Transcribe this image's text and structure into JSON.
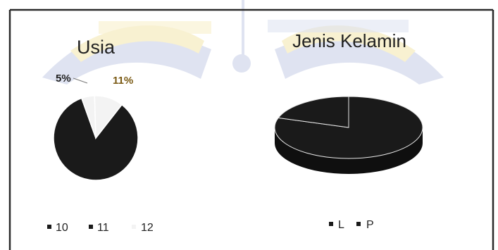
{
  "colors": {
    "dark_slice": "#1a1a1a",
    "light_slice": "#f3f3f3",
    "watermark_blue": "#c5cde6",
    "watermark_yellow": "#f3e6ad",
    "pct_5_color": "#222222",
    "pct_11_color": "#7a5a14"
  },
  "chart_data": [
    {
      "type": "pie",
      "title": "Usia",
      "slices": [
        {
          "label": "10",
          "value": 84,
          "data_label": ""
        },
        {
          "label": "11",
          "value": 5,
          "data_label": "5%"
        },
        {
          "label": "12",
          "value": 11,
          "data_label": "11%"
        }
      ],
      "legend": {
        "placement": "bottom",
        "entries": [
          "10",
          "11",
          "12"
        ]
      }
    },
    {
      "type": "pie",
      "title": "Jenis Kelamin",
      "style": "3d",
      "slices": [
        {
          "label": "L",
          "value": 80
        },
        {
          "label": "P",
          "value": 20
        }
      ],
      "legend": {
        "placement": "bottom",
        "entries": [
          "L",
          "P"
        ]
      }
    }
  ]
}
